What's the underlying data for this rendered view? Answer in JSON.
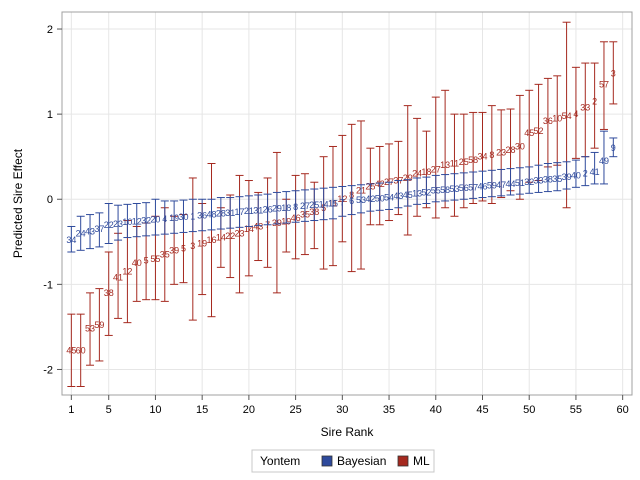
{
  "chart_data": {
    "type": "scatter",
    "xlabel": "Sire Rank",
    "ylabel": "Predicted Sire Effect",
    "xlim": [
      0,
      61
    ],
    "ylim": [
      -2.3,
      2.2
    ],
    "xticks": [
      1,
      5,
      10,
      15,
      20,
      25,
      30,
      35,
      40,
      45,
      50,
      55,
      60
    ],
    "yticks": [
      -2,
      -1,
      0,
      1,
      2
    ],
    "grid": true,
    "legend": {
      "position": "bottom",
      "title": "Yontem",
      "entries": [
        "Bayesian",
        "ML"
      ]
    },
    "colors": {
      "Bayesian": "#2e4a9c",
      "ML": "#a5291f"
    },
    "series": [
      {
        "name": "Bayesian",
        "x": [
          1,
          2,
          3,
          4,
          5,
          6,
          7,
          8,
          9,
          10,
          11,
          12,
          13,
          14,
          15,
          16,
          17,
          18,
          19,
          20,
          21,
          22,
          23,
          24,
          25,
          26,
          27,
          28,
          29,
          30,
          31,
          32,
          33,
          34,
          35,
          36,
          37,
          38,
          39,
          40,
          41,
          42,
          43,
          44,
          45,
          46,
          47,
          48,
          49,
          50,
          51,
          52,
          53,
          54,
          55,
          56,
          57,
          58,
          59
        ],
        "y": [
          -0.48,
          -0.4,
          -0.38,
          -0.35,
          -0.3,
          -0.29,
          -0.27,
          -0.26,
          -0.25,
          -0.24,
          -0.23,
          -0.22,
          -0.21,
          -0.2,
          -0.19,
          -0.18,
          -0.17,
          -0.16,
          -0.15,
          -0.14,
          -0.13,
          -0.12,
          -0.11,
          -0.1,
          -0.09,
          -0.08,
          -0.07,
          -0.06,
          -0.05,
          -0.04,
          -0.02,
          -0.01,
          0.0,
          0.01,
          0.02,
          0.04,
          0.05,
          0.07,
          0.08,
          0.1,
          0.11,
          0.12,
          0.13,
          0.14,
          0.15,
          0.16,
          0.17,
          0.18,
          0.19,
          0.2,
          0.22,
          0.23,
          0.24,
          0.26,
          0.28,
          0.3,
          0.32,
          0.45,
          0.6
        ],
        "lower": [
          -0.62,
          -0.6,
          -0.58,
          -0.56,
          -0.52,
          -0.48,
          -0.45,
          -0.44,
          -0.43,
          -0.42,
          -0.41,
          -0.4,
          -0.39,
          -0.38,
          -0.37,
          -0.36,
          -0.35,
          -0.34,
          -0.33,
          -0.32,
          -0.31,
          -0.3,
          -0.29,
          -0.28,
          -0.27,
          -0.26,
          -0.25,
          -0.24,
          -0.23,
          -0.2,
          -0.18,
          -0.16,
          -0.14,
          -0.13,
          -0.12,
          -0.1,
          -0.08,
          -0.06,
          -0.05,
          -0.03,
          -0.02,
          -0.01,
          0.0,
          0.01,
          0.02,
          0.03,
          0.04,
          0.05,
          0.06,
          0.07,
          0.08,
          0.09,
          0.1,
          0.12,
          0.14,
          0.16,
          0.18,
          0.18,
          0.5
        ],
        "upper": [
          -0.32,
          -0.2,
          -0.18,
          -0.16,
          -0.05,
          -0.07,
          -0.06,
          -0.05,
          -0.04,
          0.0,
          -0.02,
          -0.02,
          -0.01,
          0.0,
          0.0,
          0.0,
          0.02,
          0.02,
          0.03,
          0.04,
          0.05,
          0.06,
          0.08,
          0.09,
          0.1,
          0.11,
          0.12,
          0.13,
          0.14,
          0.15,
          0.16,
          0.17,
          0.18,
          0.19,
          0.2,
          0.22,
          0.23,
          0.25,
          0.26,
          0.28,
          0.29,
          0.3,
          0.31,
          0.32,
          0.33,
          0.34,
          0.35,
          0.36,
          0.37,
          0.38,
          0.4,
          0.42,
          0.43,
          0.44,
          0.46,
          0.5,
          0.55,
          0.8,
          0.72
        ],
        "labels": [
          "34",
          "24",
          "43",
          "37",
          "22",
          "23",
          "10",
          "12",
          "32",
          "20",
          "4",
          "19",
          "30",
          "1",
          "36",
          "48",
          "28",
          "31",
          "17",
          "21",
          "31",
          "26",
          "29",
          "18",
          "8",
          "27",
          "25",
          "14",
          "15",
          "7",
          "6",
          "53",
          "42",
          "50",
          "54",
          "43",
          "45",
          "13",
          "52",
          "55",
          "58",
          "53",
          "56",
          "57",
          "46",
          "59",
          "47",
          "44",
          "51",
          "32",
          "33",
          "38",
          "35",
          "39",
          "40",
          "2",
          "41",
          "49",
          "9"
        ]
      },
      {
        "name": "ML",
        "x": [
          1,
          2,
          3,
          4,
          5,
          6,
          7,
          8,
          9,
          10,
          11,
          12,
          13,
          14,
          15,
          16,
          17,
          18,
          19,
          20,
          21,
          22,
          23,
          24,
          25,
          26,
          27,
          28,
          29,
          30,
          31,
          32,
          33,
          34,
          35,
          36,
          37,
          38,
          39,
          40,
          41,
          42,
          43,
          44,
          45,
          46,
          47,
          48,
          49,
          50,
          51,
          52,
          53,
          54,
          55,
          56,
          57,
          58,
          59
        ],
        "y": [
          -1.78,
          -1.78,
          -1.52,
          -1.48,
          -1.1,
          -0.92,
          -0.85,
          -0.75,
          -0.72,
          -0.7,
          -0.65,
          -0.6,
          -0.58,
          -0.55,
          -0.52,
          -0.48,
          -0.45,
          -0.43,
          -0.4,
          -0.35,
          -0.32,
          -0.3,
          -0.28,
          -0.26,
          -0.22,
          -0.18,
          -0.15,
          -0.1,
          -0.05,
          0.0,
          0.05,
          0.1,
          0.15,
          0.18,
          0.2,
          0.22,
          0.25,
          0.3,
          0.32,
          0.35,
          0.4,
          0.42,
          0.44,
          0.46,
          0.5,
          0.52,
          0.55,
          0.58,
          0.62,
          0.78,
          0.8,
          0.92,
          0.95,
          0.98,
          1.0,
          1.08,
          1.15,
          1.35,
          1.48
        ],
        "lower": [
          -2.2,
          -2.2,
          -1.95,
          -1.9,
          -1.6,
          -1.4,
          -1.45,
          -1.2,
          -1.18,
          -1.18,
          -1.2,
          -1.0,
          -0.98,
          -1.42,
          -1.12,
          -1.38,
          -0.8,
          -0.92,
          -1.1,
          -0.9,
          -0.72,
          -0.8,
          -1.1,
          -0.62,
          -0.7,
          -0.65,
          -0.58,
          -0.82,
          -0.78,
          -0.5,
          -0.85,
          -0.82,
          -0.3,
          -0.3,
          -0.25,
          -0.18,
          -0.42,
          -0.2,
          -0.1,
          -0.22,
          -0.1,
          -0.2,
          -0.1,
          -0.05,
          -0.02,
          -0.05,
          0.02,
          0.1,
          0.0,
          0.2,
          0.22,
          0.38,
          0.4,
          -0.1,
          0.48,
          0.5,
          0.6,
          0.82,
          1.12
        ],
        "upper": [
          -1.35,
          -1.35,
          -1.1,
          -1.05,
          -0.62,
          -0.4,
          -0.25,
          -0.32,
          -0.28,
          -0.2,
          -0.1,
          -0.2,
          -0.18,
          0.25,
          -0.05,
          0.42,
          -0.1,
          0.05,
          0.28,
          0.22,
          0.08,
          0.25,
          0.55,
          0.0,
          0.28,
          0.3,
          0.2,
          0.5,
          0.62,
          0.75,
          0.88,
          0.92,
          0.6,
          0.62,
          0.65,
          0.68,
          1.1,
          0.95,
          0.8,
          1.2,
          1.28,
          1.0,
          1.0,
          1.02,
          1.02,
          1.1,
          1.05,
          1.06,
          1.22,
          1.28,
          1.35,
          1.42,
          1.45,
          2.08,
          1.55,
          1.6,
          1.6,
          1.85,
          1.85
        ],
        "labels": [
          "45",
          "60",
          "53",
          "59",
          "38",
          "41",
          "12",
          "40",
          "5",
          "55",
          "35",
          "39",
          "5",
          "3",
          "19",
          "16",
          "14",
          "22",
          "23",
          "14",
          "43",
          "7",
          "39",
          "19",
          "46",
          "35",
          "38",
          "5",
          "11",
          "12",
          "8",
          "21",
          "25",
          "42",
          "27",
          "37",
          "29",
          "24",
          "18",
          "27",
          "13",
          "11",
          "25",
          "58",
          "34",
          "8",
          "23",
          "28",
          "30",
          "45",
          "52",
          "36",
          "10",
          "54",
          "4",
          "33",
          "2",
          "57",
          "3"
        ]
      }
    ]
  }
}
